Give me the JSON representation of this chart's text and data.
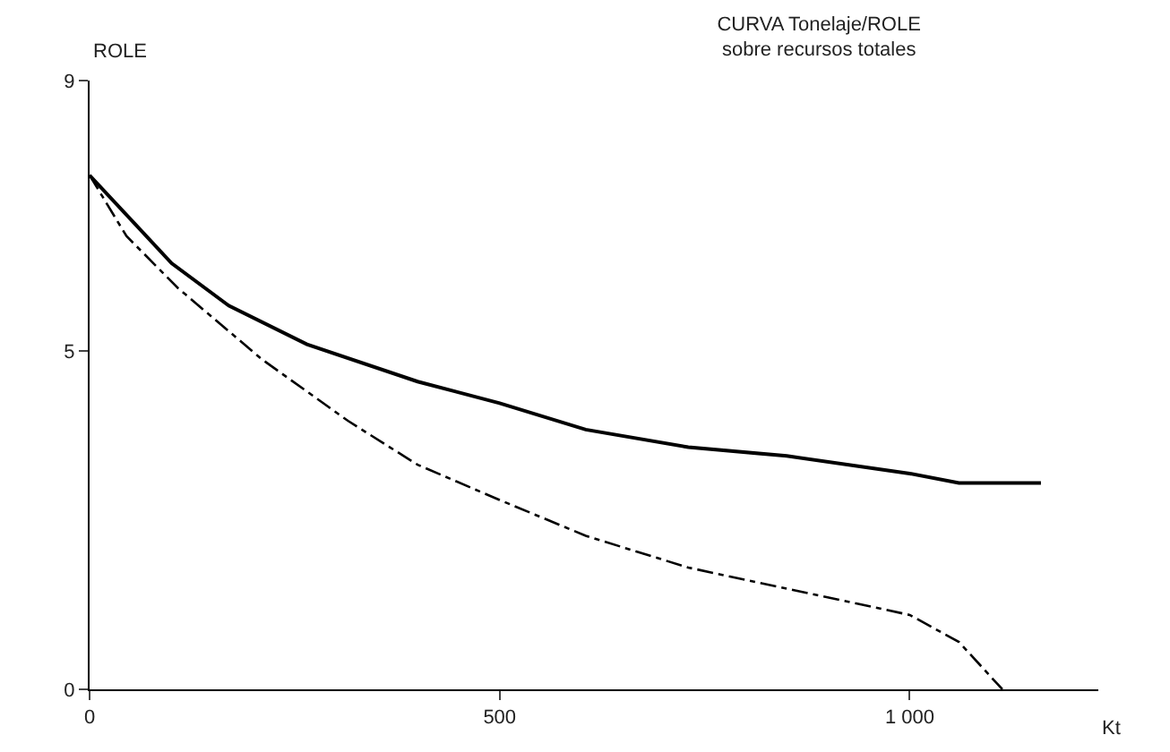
{
  "chart_data": {
    "type": "line",
    "title": "CURVA Tonelaje/ROLE\nsobre recursos totales",
    "ylabel": "ROLE",
    "xlabel": "Kt",
    "xlim": [
      0,
      1230
    ],
    "xticks": [
      0,
      500,
      {
        "value": 1000,
        "label": "1 000"
      }
    ],
    "ylim": [
      0,
      9
    ],
    "yticks": [
      0,
      5,
      9
    ],
    "marker": "none",
    "series": [
      {
        "color": "#000000",
        "line_style": "solid",
        "x": [
          0,
          100,
          170,
          265,
          400,
          500,
          605,
          730,
          850,
          1000,
          1060,
          1160
        ],
        "values": [
          7.6,
          6.3,
          5.67,
          5.1,
          4.55,
          4.23,
          3.84,
          3.58,
          3.45,
          3.19,
          3.05,
          3.05
        ]
      },
      {
        "color": "#000000",
        "line_style": "dashed",
        "x": [
          0,
          45,
          108,
          210,
          315,
          400,
          500,
          605,
          730,
          850,
          1000,
          1060,
          1113
        ],
        "values": [
          7.6,
          6.7,
          5.93,
          4.88,
          3.97,
          3.32,
          2.8,
          2.27,
          1.8,
          1.49,
          1.1,
          0.7,
          0
        ]
      }
    ]
  }
}
